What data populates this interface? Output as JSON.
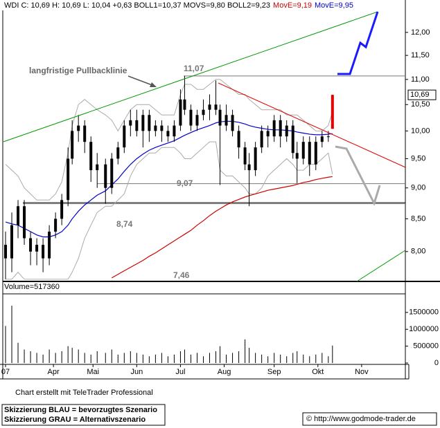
{
  "chart_data": {
    "type": "candlestick",
    "title": "WDI C: 10,69 H: 10,69 L: 10,04 +0,63 BOLL1=10,37 MOVS=9,80 BOLL2=9,23",
    "log_scale": true,
    "xlim": [
      0,
      193
    ],
    "xticks": [
      {
        "value": 1,
        "label": "07"
      },
      {
        "value": 24,
        "label": "Apr"
      },
      {
        "value": 43,
        "label": "Mai"
      },
      {
        "value": 64,
        "label": "Jun"
      },
      {
        "value": 85,
        "label": "Jul"
      },
      {
        "value": 106,
        "label": "Aug"
      },
      {
        "value": 130,
        "label": "Sep"
      },
      {
        "value": 151,
        "label": "Okt"
      },
      {
        "value": 172,
        "label": "Nov"
      }
    ],
    "ylim": [
      7.57,
      12.66
    ],
    "yticks": [
      {
        "value": 8,
        "label": "8,00"
      },
      {
        "value": 8.5,
        "label": "8,50"
      },
      {
        "value": 9,
        "label": "9,00"
      },
      {
        "value": 9.5,
        "label": "9,50"
      },
      {
        "value": 10,
        "label": "10,00"
      },
      {
        "value": 10.5,
        "label": "10,50"
      },
      {
        "value": 11,
        "label": "11,00"
      },
      {
        "value": 11.5,
        "label": "11,50"
      },
      {
        "value": 12,
        "label": "12,00"
      }
    ],
    "x": [
      1,
      4,
      7,
      10,
      13,
      16,
      19,
      22,
      25,
      28,
      31,
      33,
      36,
      39,
      42,
      45,
      49,
      52,
      55,
      58,
      61,
      64,
      67,
      70,
      73,
      76,
      79,
      82,
      85,
      87,
      90,
      93,
      96,
      99,
      102,
      104,
      107,
      110,
      113,
      116,
      118,
      121,
      124,
      127,
      130,
      133,
      136,
      139,
      141,
      144,
      147,
      150,
      153,
      156,
      158
    ],
    "open": [
      8.1,
      7.9,
      8.4,
      8.7,
      8.2,
      8.0,
      8.1,
      7.9,
      8.3,
      8.5,
      8.8,
      9.5,
      10.0,
      10.1,
      9.8,
      9.3,
      9.4,
      9.0,
      9.5,
      9.7,
      10.1,
      10.2,
      10.0,
      10.3,
      10.0,
      10.1,
      10.0,
      9.9,
      10.1,
      10.6,
      10.4,
      10.1,
      10.3,
      10.4,
      10.5,
      10.4,
      10.1,
      10.3,
      10.0,
      9.7,
      9.4,
      9.3,
      9.7,
      10.0,
      9.9,
      10.2,
      9.9,
      10.1,
      9.6,
      9.5,
      9.8,
      9.4,
      9.8,
      9.9,
      10.04
    ],
    "high": [
      8.3,
      8.6,
      8.8,
      8.8,
      8.3,
      8.2,
      8.2,
      8.4,
      8.6,
      8.9,
      9.7,
      10.2,
      10.3,
      10.2,
      9.9,
      9.6,
      9.5,
      9.6,
      9.8,
      10.2,
      10.4,
      10.4,
      10.4,
      10.4,
      10.2,
      10.2,
      10.1,
      10.2,
      10.8,
      11.07,
      10.5,
      10.4,
      10.6,
      10.7,
      10.98,
      10.5,
      10.5,
      10.4,
      10.1,
      9.8,
      9.6,
      9.8,
      10.1,
      10.1,
      10.3,
      10.3,
      10.2,
      10.2,
      9.8,
      9.9,
      9.9,
      9.9,
      10.0,
      10.0,
      10.69
    ],
    "low": [
      7.6,
      7.7,
      8.2,
      8.1,
      7.8,
      7.8,
      7.7,
      7.8,
      8.2,
      8.4,
      8.7,
      9.4,
      9.8,
      9.6,
      9.1,
      9.0,
      8.74,
      8.9,
      9.4,
      9.6,
      9.9,
      9.9,
      9.7,
      9.8,
      9.9,
      9.8,
      9.8,
      9.8,
      10.0,
      10.3,
      10.0,
      10.0,
      10.2,
      10.2,
      10.3,
      9.05,
      10.0,
      9.9,
      9.5,
      9.3,
      8.7,
      9.2,
      9.6,
      9.7,
      9.8,
      9.7,
      9.8,
      9.5,
      9.08,
      9.4,
      9.2,
      9.3,
      9.7,
      9.8,
      10.04
    ],
    "close": [
      7.9,
      8.4,
      8.7,
      8.2,
      8.0,
      8.1,
      7.9,
      8.3,
      8.5,
      8.8,
      9.5,
      10.0,
      10.1,
      9.8,
      9.3,
      9.4,
      9.0,
      9.5,
      9.7,
      10.1,
      10.2,
      10.0,
      10.3,
      10.0,
      10.1,
      10.0,
      9.9,
      10.1,
      10.6,
      10.4,
      10.1,
      10.3,
      10.4,
      10.5,
      10.4,
      10.1,
      10.3,
      10.0,
      9.7,
      9.4,
      9.3,
      9.7,
      10.0,
      9.9,
      10.2,
      9.9,
      10.1,
      9.6,
      9.5,
      9.8,
      9.4,
      9.8,
      9.9,
      9.9,
      10.69
    ],
    "colors": {
      "candle": "#000000",
      "last": "#e00000"
    },
    "series": [
      {
        "name": "MovE=9,19",
        "color": "#cc0000",
        "values": [
          null,
          null,
          null,
          null,
          null,
          null,
          null,
          null,
          null,
          null,
          null,
          null,
          null,
          null,
          null,
          null,
          null,
          7.62,
          7.67,
          7.72,
          7.77,
          7.82,
          7.87,
          7.93,
          7.98,
          8.04,
          8.1,
          8.16,
          8.22,
          8.26,
          8.32,
          8.4,
          8.47,
          8.55,
          8.62,
          8.66,
          8.72,
          8.77,
          8.81,
          8.85,
          8.87,
          8.9,
          8.93,
          8.96,
          8.98,
          9.0,
          9.02,
          9.04,
          9.06,
          9.09,
          9.11,
          9.14,
          9.16,
          9.18,
          9.19
        ]
      },
      {
        "name": "MovE=9,95",
        "color": "#0000cc",
        "values": [
          8.45,
          8.42,
          8.4,
          8.35,
          8.3,
          8.25,
          8.22,
          8.22,
          8.25,
          8.3,
          8.4,
          8.5,
          8.62,
          8.72,
          8.8,
          8.88,
          8.95,
          9.05,
          9.15,
          9.28,
          9.4,
          9.5,
          9.58,
          9.65,
          9.7,
          9.74,
          9.78,
          9.82,
          9.88,
          9.92,
          9.97,
          10.02,
          10.06,
          10.1,
          10.15,
          10.17,
          10.18,
          10.18,
          10.16,
          10.13,
          10.1,
          10.07,
          10.05,
          10.03,
          10.02,
          10.02,
          10.01,
          10.0,
          9.98,
          9.96,
          9.94,
          9.93,
          9.93,
          9.94,
          9.95
        ]
      }
    ],
    "bands": {
      "color": "#aaaaaa",
      "upper": [
        9.4,
        9.3,
        9.2,
        9.0,
        8.9,
        8.8,
        8.8,
        8.8,
        8.9,
        9.1,
        9.6,
        10.1,
        10.5,
        10.6,
        10.5,
        10.4,
        10.3,
        10.2,
        10.0,
        10.2,
        10.4,
        10.5,
        10.5,
        10.5,
        10.4,
        10.3,
        10.3,
        10.3,
        10.7,
        10.9,
        10.9,
        10.8,
        10.8,
        10.9,
        11.0,
        11.0,
        10.9,
        10.8,
        10.7,
        10.7,
        10.6,
        10.5,
        10.4,
        10.4,
        10.4,
        10.4,
        10.3,
        10.3,
        10.3,
        10.2,
        10.1,
        10.0,
        10.0,
        10.1,
        10.37
      ],
      "lower": [
        7.6,
        7.6,
        7.7,
        7.6,
        7.6,
        7.6,
        7.6,
        7.6,
        7.6,
        7.6,
        7.6,
        7.7,
        7.9,
        8.2,
        8.4,
        8.6,
        8.7,
        8.7,
        8.8,
        8.9,
        9.2,
        9.4,
        9.5,
        9.6,
        9.6,
        9.7,
        9.7,
        9.7,
        9.6,
        9.5,
        9.5,
        9.6,
        9.7,
        9.8,
        9.8,
        9.3,
        9.2,
        9.2,
        9.1,
        9.0,
        8.9,
        8.9,
        9.0,
        9.2,
        9.3,
        9.4,
        9.5,
        9.4,
        9.3,
        9.3,
        9.4,
        9.4,
        9.5,
        9.6,
        9.23
      ]
    },
    "levels": [
      {
        "value": 11.07,
        "label": "11,07"
      },
      {
        "value": 9.07,
        "label": "9,07"
      },
      {
        "value": 8.74,
        "label": "8,74"
      },
      {
        "value": 7.46,
        "label": "7,46"
      }
    ],
    "last": {
      "value": 10.69,
      "label": "10,69"
    },
    "annotation": "langfristige Pullbacklinie",
    "volume_label": "Volume=517360",
    "volume": [
      1100000,
      1700000,
      600000,
      400000,
      350000,
      300000,
      250000,
      400000,
      300000,
      350000,
      500000,
      450000,
      400000,
      300000,
      250000,
      350000,
      300000,
      400000,
      250000,
      300000,
      350000,
      300000,
      250000,
      200000,
      250000,
      300000,
      200000,
      250000,
      350000,
      400000,
      250000,
      300000,
      200000,
      300000,
      350000,
      500000,
      250000,
      300000,
      350000,
      700000,
      450000,
      300000,
      250000,
      200000,
      300000,
      250000,
      200000,
      300000,
      350000,
      250000,
      200000,
      250000,
      300000,
      200000,
      517360
    ],
    "vlim": [
      0,
      2050000
    ],
    "vticks": [
      0,
      500000,
      1000000,
      1500000
    ]
  },
  "footer": {
    "credit": "Chart erstellt mit TeleTrader Professional",
    "note_blue": "Skizzierung BLAU = bevorzugtes Szenario",
    "note_grey": "Skizzierung GRAU = Alternativszenario",
    "url": "© http://www.godmode-trader.de"
  }
}
